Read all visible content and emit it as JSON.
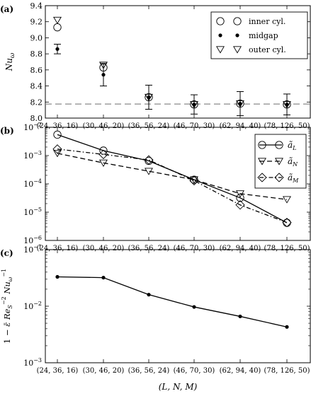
{
  "chart_data": [
    {
      "type": "scatter",
      "panel_label": "(a)",
      "categories": [
        "(24, 36, 16)",
        "(30, 46, 20)",
        "(36, 56, 24)",
        "(46, 70, 30)",
        "(62, 94, 40)",
        "(78, 126, 50)"
      ],
      "ylabel": "Nuω",
      "ylabel_parts": [
        "Nu",
        "ω"
      ],
      "ylim": [
        8.0,
        9.4
      ],
      "yticks": [
        8.0,
        8.2,
        8.4,
        8.6,
        8.8,
        9.0,
        9.2,
        9.4
      ],
      "ytick_labels": [
        "8.0",
        "8.2",
        "8.4",
        "8.6",
        "8.8",
        "9.0",
        "9.2",
        "9.4"
      ],
      "reference_line": 8.175,
      "legend_position": "top-right",
      "series": [
        {
          "name": "inner cyl.",
          "marker": "circle",
          "values": [
            9.13,
            8.63,
            8.26,
            8.17,
            8.18,
            8.17
          ]
        },
        {
          "name": "midgap",
          "marker": "dot",
          "values": [
            8.86,
            8.54,
            8.26,
            8.17,
            8.18,
            8.17
          ],
          "error": [
            0.06,
            0.14,
            0.15,
            0.12,
            0.15,
            0.13
          ]
        },
        {
          "name": "outer cyl.",
          "marker": "triangle-down",
          "values": [
            9.22,
            8.66,
            8.26,
            8.17,
            8.18,
            8.17
          ]
        }
      ]
    },
    {
      "type": "line",
      "panel_label": "(b)",
      "categories": [
        "(24, 36, 16)",
        "(30, 46, 20)",
        "(36, 56, 24)",
        "(46, 70, 30)",
        "(62, 94, 40)",
        "(78, 126, 50)"
      ],
      "yscale": "log",
      "ylim": [
        1e-06,
        0.01
      ],
      "yticks": [
        1e-06,
        1e-05,
        0.0001,
        0.001,
        0.01
      ],
      "ytick_labels": [
        [
          "10",
          "−6"
        ],
        [
          "10",
          "−5"
        ],
        [
          "10",
          "−4"
        ],
        [
          "10",
          "−3"
        ],
        [
          "10",
          "−2"
        ]
      ],
      "legend_position": "top-right",
      "series": [
        {
          "name": "ãL",
          "name_parts": [
            "ã",
            "L"
          ],
          "marker": "circle",
          "linestyle": "solid",
          "values": [
            0.0055,
            0.0015,
            0.00065,
            0.00014,
            3.2e-05,
            4.2e-06
          ]
        },
        {
          "name": "ãN",
          "name_parts": [
            "ã",
            "N"
          ],
          "marker": "triangle-down",
          "linestyle": "dashed",
          "values": [
            0.0012,
            0.00055,
            0.00028,
            0.00014,
            4.5e-05,
            2.8e-05
          ]
        },
        {
          "name": "ãM",
          "name_parts": [
            "ã",
            "M"
          ],
          "marker": "diamond",
          "linestyle": "dashdot",
          "values": [
            0.0017,
            0.0011,
            0.0007,
            0.00013,
            1.8e-05,
            4.3e-06
          ]
        }
      ]
    },
    {
      "type": "line",
      "panel_label": "(c)",
      "categories": [
        "(24, 36, 16)",
        "(30, 46, 20)",
        "(36, 56, 24)",
        "(46, 70, 30)",
        "(62, 94, 40)",
        "(78, 126, 50)"
      ],
      "xlabel": "(L, N, M)",
      "ylabel": "1 − ε̄ Re_S⁻² Nu_ω⁻¹",
      "ylabel_parts": [
        "1 − ",
        "ε̄",
        " Re",
        "S",
        "−2",
        " Nu",
        "ω",
        "−1"
      ],
      "yscale": "log",
      "ylim": [
        0.001,
        0.1
      ],
      "yticks": [
        0.001,
        0.01,
        0.1
      ],
      "ytick_labels": [
        [
          "10",
          "−3"
        ],
        [
          "10",
          "−2"
        ],
        [
          "10",
          "−1"
        ]
      ],
      "series": [
        {
          "marker": "dot",
          "linestyle": "solid",
          "values": [
            0.033,
            0.032,
            0.016,
            0.0097,
            0.0066,
            0.0043
          ]
        }
      ]
    }
  ]
}
